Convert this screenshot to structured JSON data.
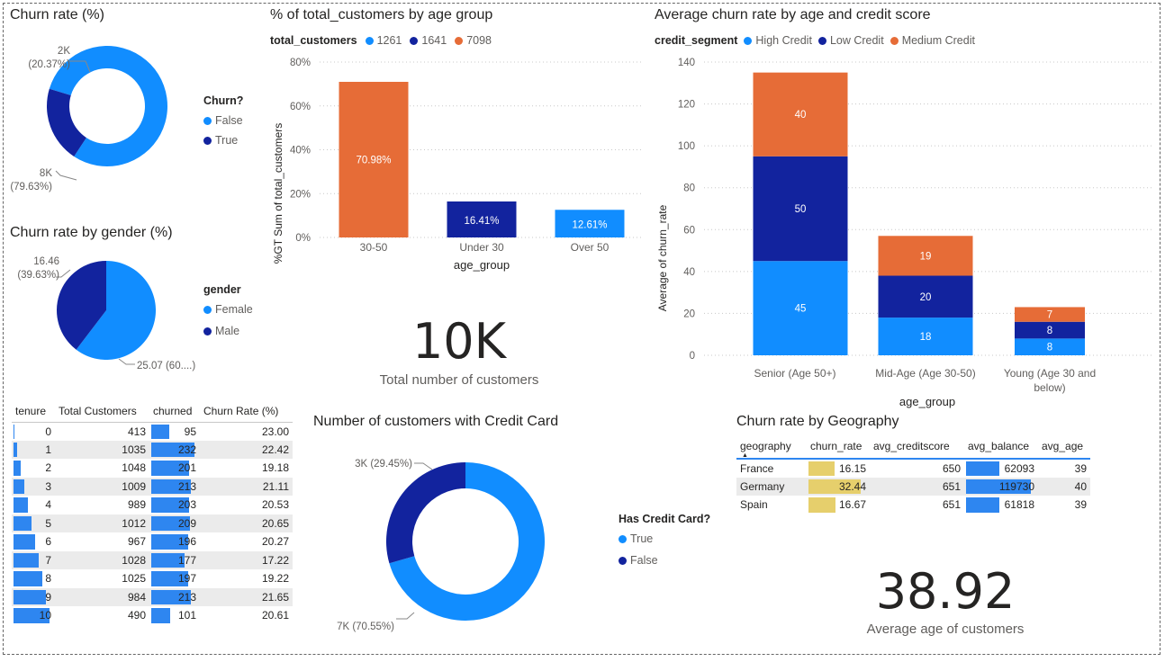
{
  "colors": {
    "blue": "#118dff",
    "navy": "#12239e",
    "orange": "#e66c37",
    "bar_blue": "#2e86f0",
    "yellow": "#e6cf6c"
  },
  "churn_donut": {
    "title": "Churn rate (%)",
    "legend_title": "Churn?",
    "legend": [
      "False",
      "True"
    ],
    "label_true_a": "2K",
    "label_true_b": "(20.37%)",
    "label_false_a": "8K",
    "label_false_b": "(79.63%)"
  },
  "gender_pie": {
    "title": "Churn rate by gender (%)",
    "legend_title": "gender",
    "legend": [
      "Female",
      "Male"
    ],
    "label_male_a": "16.46",
    "label_male_b": "(39.63%)",
    "label_female": "25.07 (60....)"
  },
  "age_pct_chart": {
    "title": "% of total_customers by age group",
    "legend_title": "total_customers",
    "legend": [
      "1261",
      "1641",
      "7098"
    ],
    "ylabel": "%GT Sum of total_customers",
    "xlabel": "age_group",
    "y_ticks": [
      "0%",
      "20%",
      "40%",
      "60%",
      "80%"
    ]
  },
  "kpi_total": {
    "value": "10K",
    "label": "Total number of customers"
  },
  "credit_chart": {
    "title": "Average churn rate by age and credit score",
    "legend_title": "credit_segment",
    "legend": [
      "High Credit",
      "Low Credit",
      "Medium Credit"
    ],
    "ylabel": "Average of churn_rate",
    "xlabel": "age_group",
    "y_ticks": [
      "0",
      "20",
      "40",
      "60",
      "80",
      "100",
      "120",
      "140"
    ],
    "cat_labels": [
      "Senior (Age 50+)",
      "Mid-Age (Age 30-50)",
      "Young (Age 30 and",
      "below)"
    ]
  },
  "tenure_table": {
    "headers": [
      "tenure",
      "Total Customers",
      "churned",
      "Churn Rate (%)"
    ],
    "rows": [
      [
        "0",
        "413",
        "95",
        "23.00"
      ],
      [
        "1",
        "1035",
        "232",
        "22.42"
      ],
      [
        "2",
        "1048",
        "201",
        "19.18"
      ],
      [
        "3",
        "1009",
        "213",
        "21.11"
      ],
      [
        "4",
        "989",
        "203",
        "20.53"
      ],
      [
        "5",
        "1012",
        "209",
        "20.65"
      ],
      [
        "6",
        "967",
        "196",
        "20.27"
      ],
      [
        "7",
        "1028",
        "177",
        "17.22"
      ],
      [
        "8",
        "1025",
        "197",
        "19.22"
      ],
      [
        "9",
        "984",
        "213",
        "21.65"
      ],
      [
        "10",
        "490",
        "101",
        "20.61"
      ]
    ]
  },
  "credit_card_donut": {
    "title": "Number of customers with Credit Card",
    "legend_title": "Has Credit Card?",
    "legend": [
      "True",
      "False"
    ],
    "label_false": "3K (29.45%)",
    "label_true": "7K (70.55%)"
  },
  "geo_table": {
    "title": "Churn rate by Geography",
    "headers": [
      "geography",
      "churn_rate",
      "avg_creditscore",
      "avg_balance",
      "avg_age"
    ],
    "rows": [
      [
        "France",
        "16.15",
        "650",
        "62093",
        "39"
      ],
      [
        "Germany",
        "32.44",
        "651",
        "119730",
        "40"
      ],
      [
        "Spain",
        "16.67",
        "651",
        "61818",
        "39"
      ]
    ]
  },
  "kpi_age": {
    "value": "38.92",
    "label": "Average age of customers"
  },
  "chart_data": [
    {
      "type": "pie",
      "title": "Churn rate (%)",
      "categories": [
        "False",
        "True"
      ],
      "values": [
        79.63,
        20.37
      ]
    },
    {
      "type": "pie",
      "title": "Churn rate by gender (%)",
      "categories": [
        "Female",
        "Male"
      ],
      "values": [
        25.07,
        16.46
      ]
    },
    {
      "type": "bar",
      "title": "% of total_customers by age group",
      "categories": [
        "30-50",
        "Under 30",
        "Over 50"
      ],
      "values": [
        70.98,
        16.41,
        12.61
      ],
      "data_labels": [
        "70.98%",
        "16.41%",
        "12.61%"
      ],
      "xlabel": "age_group",
      "ylabel": "%GT Sum of total_customers",
      "ylim": [
        0,
        80
      ]
    },
    {
      "type": "bar",
      "title": "Average churn rate by age and credit score",
      "categories": [
        "Senior (Age 50+)",
        "Mid-Age (Age 30-50)",
        "Young (Age 30 and below)"
      ],
      "series": [
        {
          "name": "High Credit",
          "values": [
            45,
            18,
            8
          ]
        },
        {
          "name": "Low Credit",
          "values": [
            50,
            20,
            8
          ]
        },
        {
          "name": "Medium Credit",
          "values": [
            40,
            19,
            7
          ]
        }
      ],
      "xlabel": "age_group",
      "ylabel": "Average of churn_rate",
      "ylim": [
        0,
        140
      ]
    },
    {
      "type": "pie",
      "title": "Number of customers with Credit Card",
      "categories": [
        "True",
        "False"
      ],
      "values": [
        70.55,
        29.45
      ]
    }
  ]
}
